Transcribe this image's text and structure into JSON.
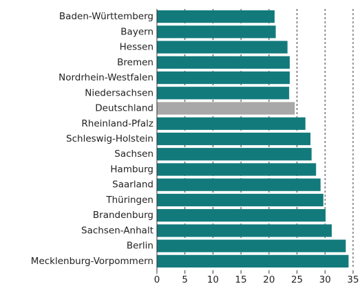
{
  "chart_data": {
    "type": "barh",
    "categories": [
      "Baden-Württemberg",
      "Bayern",
      "Hessen",
      "Bremen",
      "Nordrhein-Westfalen",
      "Niedersachsen",
      "Deutschland",
      "Rheinland-Pfalz",
      "Schleswig-Holstein",
      "Sachsen",
      "Hamburg",
      "Saarland",
      "Thüringen",
      "Brandenburg",
      "Sachsen-Anhalt",
      "Berlin",
      "Mecklenburg-Vorpommern"
    ],
    "values": [
      21.0,
      21.2,
      23.3,
      23.7,
      23.7,
      23.6,
      24.6,
      26.5,
      27.4,
      27.6,
      28.4,
      29.2,
      29.7,
      30.1,
      31.2,
      33.7,
      34.2
    ],
    "colors": [
      "#137a7c",
      "#137a7c",
      "#137a7c",
      "#137a7c",
      "#137a7c",
      "#137a7c",
      "#a8a8a8",
      "#137a7c",
      "#137a7c",
      "#137a7c",
      "#137a7c",
      "#137a7c",
      "#137a7c",
      "#137a7c",
      "#137a7c",
      "#137a7c",
      "#137a7c"
    ],
    "xlim": [
      0,
      35
    ],
    "xticks": [
      0,
      5,
      10,
      15,
      20,
      25,
      30,
      35
    ],
    "grid": true
  }
}
